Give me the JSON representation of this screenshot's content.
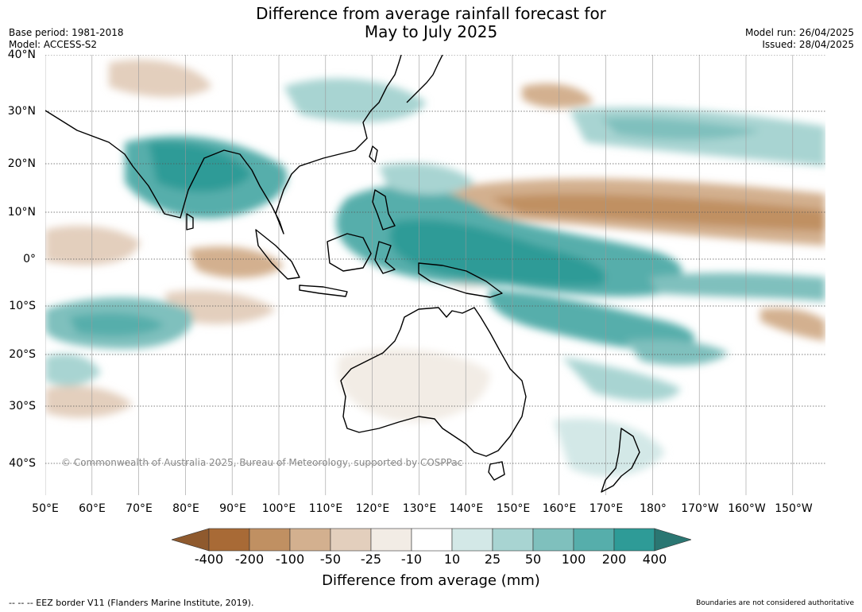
{
  "header": {
    "title_line1": "Difference from average rainfall forecast for",
    "title_line2": "May to July 2025",
    "base_period": "Base period: 1981-2018",
    "model": "Model: ACCESS-S2",
    "model_run": "Model run: 26/04/2025",
    "issued": "Issued: 28/04/2025"
  },
  "map": {
    "region": "Indo-Pacific, 50°E to 145°W, 45°S to 40°N",
    "lat_labels": [
      "40°N",
      "30°N",
      "20°N",
      "10°N",
      "0°",
      "10°S",
      "20°S",
      "30°S",
      "40°S"
    ],
    "lon_labels": [
      "50°E",
      "60°E",
      "70°E",
      "80°E",
      "90°E",
      "100°E",
      "110°E",
      "120°E",
      "130°E",
      "140°E",
      "150°E",
      "160°E",
      "170°E",
      "180°",
      "170°W",
      "160°W",
      "150°W"
    ],
    "copyright": "© Commonwealth of Australia 2025, Bureau of Meteorology, supported by COSPPac"
  },
  "colorbar": {
    "title": "Difference from average (mm)",
    "tick_labels": [
      "-400",
      "-200",
      "-100",
      "-50",
      "-25",
      "-10",
      "10",
      "25",
      "50",
      "100",
      "200",
      "400"
    ],
    "colors": [
      "#a86a36",
      "#c09062",
      "#d3b08f",
      "#e3cfbd",
      "#f2ece5",
      "#ffffff",
      "#d3e8e7",
      "#a8d4d2",
      "#7fc0bd",
      "#56aeab",
      "#2e9b97",
      "#2a7672"
    ],
    "extend_low_color": "#8f5a2e",
    "extend_high_color": "#2a7672"
  },
  "footer": {
    "eez_note": "--  --  -- EEZ border V11 (Flanders Marine Institute, 2019).",
    "boundaries_note": "Boundaries are not considered authoritative"
  }
}
